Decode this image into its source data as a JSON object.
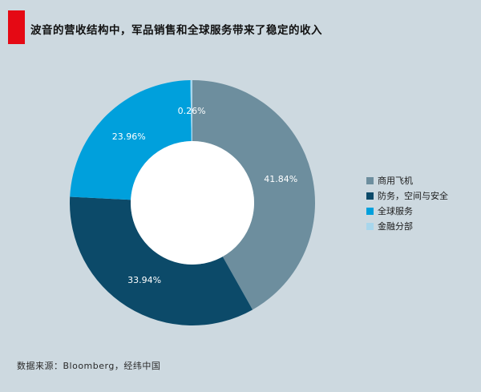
{
  "header": {
    "title": "波音的营收结构中，军品销售和全球服务带来了稳定的收入"
  },
  "footer": {
    "source": "数据来源：Bloomberg，经纬中国"
  },
  "colors": {
    "background": "#cdd9e0",
    "accent_red": "#e50914",
    "donut_hole": "#ffffff",
    "percent_label_text": "#ffffff"
  },
  "chart_data": {
    "type": "pie",
    "style": "donut",
    "title": "波音的营收结构中，军品销售和全球服务带来了稳定的收入",
    "legend_position": "right",
    "start_angle_deg": 0,
    "direction": "clockwise",
    "slices": [
      {
        "label": "商用飞机",
        "value": 41.84,
        "pct_label": "41.84%",
        "color": "#6d8e9e"
      },
      {
        "label": "防务，空间与安全",
        "value": 33.94,
        "pct_label": "33.94%",
        "color": "#0c4a69"
      },
      {
        "label": "全球服务",
        "value": 23.96,
        "pct_label": "23.96%",
        "color": "#00a0dc"
      },
      {
        "label": "金融分部",
        "value": 0.26,
        "pct_label": "0.26%",
        "color": "#a8d6ec"
      }
    ]
  }
}
